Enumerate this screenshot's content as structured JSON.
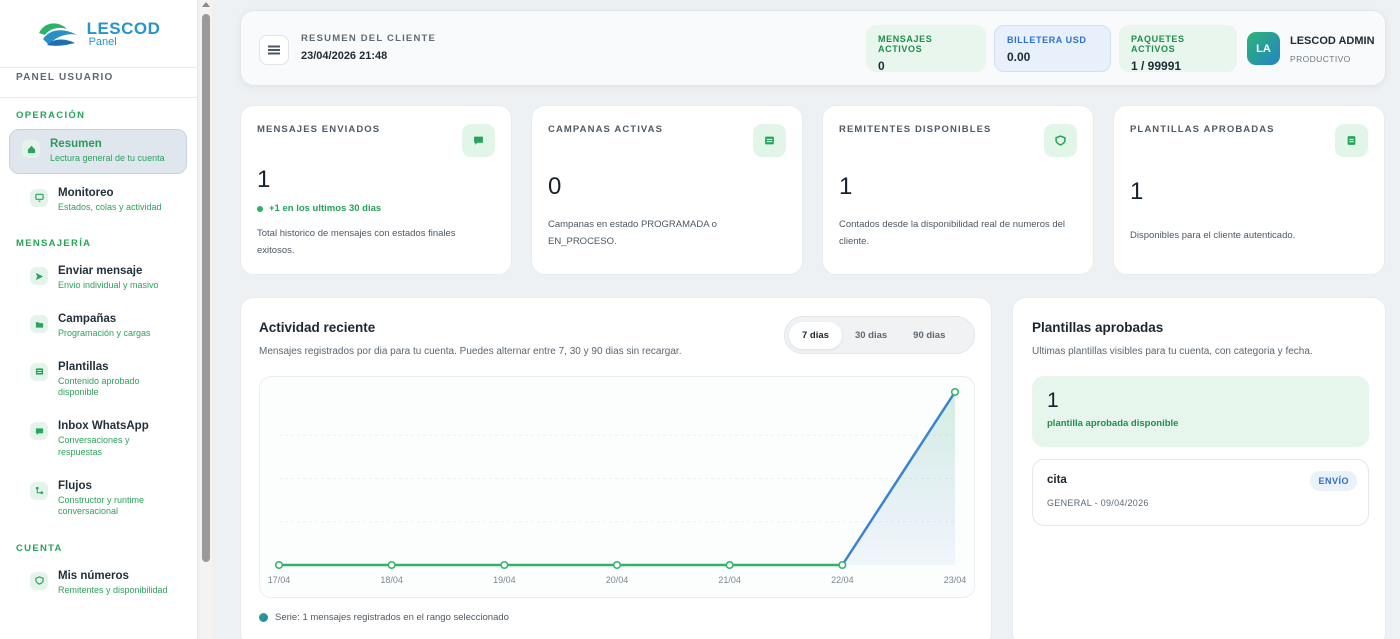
{
  "sidebar": {
    "logo_title": "LESCOD",
    "logo_sub": "Panel",
    "panel_label": "PANEL USUARIO",
    "sections": {
      "operacion": "OPERACIÓN",
      "mensajeria": "MENSAJERÍA",
      "cuenta": "CUENTA"
    },
    "items": [
      {
        "title": "Resumen",
        "sub": "Lectura general de tu cuenta",
        "icon": "home-icon"
      },
      {
        "title": "Monitoreo",
        "sub": "Estados, colas y actividad",
        "icon": "monitor-icon"
      },
      {
        "title": "Enviar mensaje",
        "sub": "Envio individual y masivo",
        "icon": "send-icon"
      },
      {
        "title": "Campañas",
        "sub": "Programación y cargas",
        "icon": "folder-icon"
      },
      {
        "title": "Plantillas",
        "sub": "Contenido aprobado disponible",
        "icon": "template-icon"
      },
      {
        "title": "Inbox WhatsApp",
        "sub": "Conversaciones y respuestas",
        "icon": "chat-icon"
      },
      {
        "title": "Flujos",
        "sub": "Constructor y runtime conversacional",
        "icon": "flow-icon"
      },
      {
        "title": "Mis números",
        "sub": "Remitentes y disponibilidad",
        "icon": "shield-icon"
      }
    ]
  },
  "header": {
    "label": "RESUMEN DEL CLIENTE",
    "datetime": "23/04/2026 21:48",
    "chips": [
      {
        "label": "MENSAJES ACTIVOS",
        "value": "0"
      },
      {
        "label": "BILLETERA USD",
        "value": "0.00"
      },
      {
        "label": "PAQUETES ACTIVOS",
        "value": "1 / 99991"
      }
    ],
    "avatar": "LA",
    "user_name": "LESCOD ADMIN",
    "user_role": "PRODUCTIVO"
  },
  "stats": [
    {
      "title": "MENSAJES ENVIADOS",
      "value": "1",
      "trend": "+1 en los ultimos 30 dias",
      "desc": "Total historico de mensajes con estados finales exitosos.",
      "icon": "message-icon"
    },
    {
      "title": "CAMPANAS ACTIVAS",
      "value": "0",
      "desc": "Campanas en estado PROGRAMADA o EN_PROCESO.",
      "icon": "list-icon"
    },
    {
      "title": "REMITENTES DISPONIBLES",
      "value": "1",
      "desc": "Contados desde la disponibilidad real de numeros del cliente.",
      "icon": "shield-icon"
    },
    {
      "title": "PLANTILLAS APROBADAS",
      "value": "1",
      "desc": "Disponibles para el cliente autenticado.",
      "icon": "document-icon"
    }
  ],
  "activity": {
    "title": "Actividad reciente",
    "subtitle": "Mensajes registrados por dia para tu cuenta. Puedes alternar entre 7, 30 y 90 dias sin recargar.",
    "ranges": [
      "7 dias",
      "30 dias",
      "90 dias"
    ],
    "legend": "Serie: 1 mensajes registrados en el rango seleccionado"
  },
  "chart_data": {
    "type": "line",
    "x": [
      "17/04",
      "18/04",
      "19/04",
      "20/04",
      "21/04",
      "22/04",
      "23/04"
    ],
    "values": [
      0,
      0,
      0,
      0,
      0,
      0,
      1
    ],
    "ylim": [
      0,
      1
    ],
    "colors": {
      "line_flat": "#2fb36a",
      "line_up": "#3b82d1"
    }
  },
  "templates": {
    "title": "Plantillas aprobadas",
    "subtitle": "Ultimas plantillas visibles para tu cuenta, con categoria y fecha.",
    "count": "1",
    "count_label": "plantilla aprobada disponible",
    "items": [
      {
        "name": "cita",
        "meta": "GENERAL - 09/04/2026",
        "badge": "ENVÍO"
      }
    ]
  }
}
